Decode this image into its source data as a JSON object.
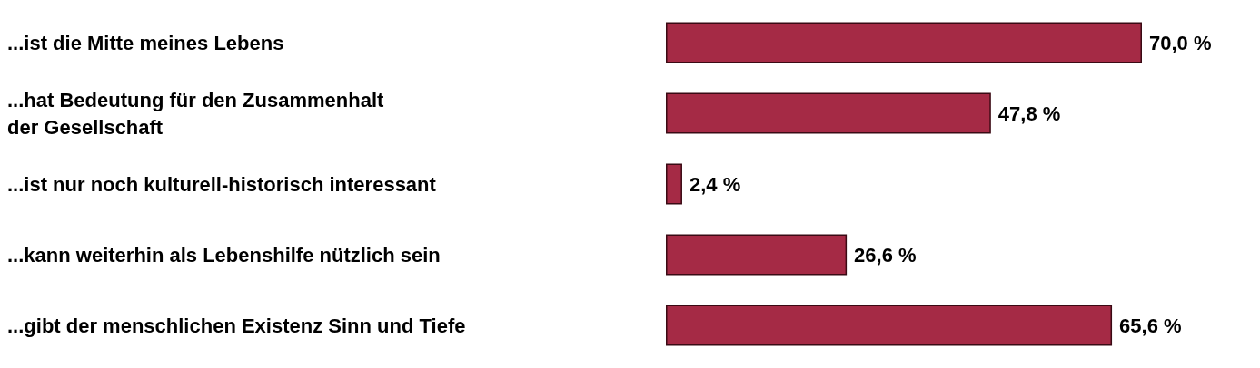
{
  "chart_data": {
    "type": "bar",
    "orientation": "horizontal",
    "categories": [
      "...ist die Mitte meines Lebens",
      "...hat Bedeutung für den Zusammenhalt\nder Gesellschaft",
      "...ist nur noch kulturell-historisch interessant",
      "...kann weiterhin als Lebenshilfe nützlich sein",
      "...gibt der menschlichen Existenz Sinn und Tiefe"
    ],
    "values": [
      70.0,
      47.8,
      2.4,
      26.6,
      65.6
    ],
    "value_labels": [
      "70,0 %",
      "47,8 %",
      "2,4 %",
      "26,6 %",
      "65,6 %"
    ],
    "color": "#a52a45"
  }
}
